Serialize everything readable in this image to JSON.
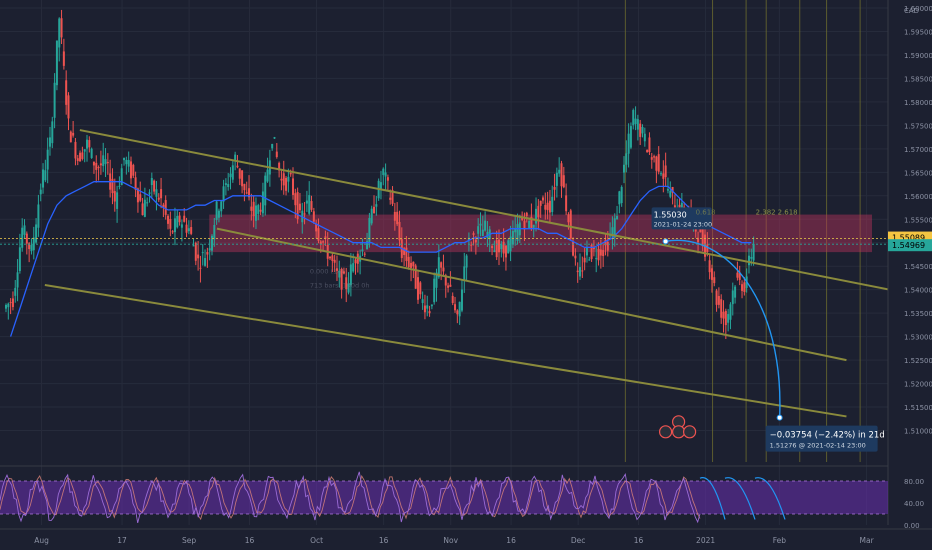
{
  "chart_data": {
    "type": "line",
    "title": "",
    "currency_label": "CAD",
    "ylim": [
      1.505,
      1.6
    ],
    "y_ticks": [
      "1.60000",
      "1.59500",
      "1.59000",
      "1.58500",
      "1.58000",
      "1.57500",
      "1.57000",
      "1.56500",
      "1.56000",
      "1.55500",
      "1.55000",
      "1.54500",
      "1.54000",
      "1.53500",
      "1.53000",
      "1.52500",
      "1.52000",
      "1.51500",
      "1.51000"
    ],
    "x_ticks": [
      "Aug",
      "17",
      "Sep",
      "16",
      "Oct",
      "16",
      "Nov",
      "16",
      "Dec",
      "16",
      "2021",
      "Feb",
      "Mar",
      "16"
    ],
    "price_labels": {
      "last": "1.55089",
      "current": "1.54969"
    },
    "colors": {
      "background": "#1c2030",
      "up": "#26a69a",
      "down": "#ef5350",
      "moving_average": "#2962ff",
      "channel": "#8a8a3c",
      "zone": "#b8335a",
      "oscillator": "#9b6bd6",
      "projection": "#2196f3"
    },
    "series": [
      {
        "values": [
          1.538,
          1.553,
          1.548,
          1.562,
          1.571,
          1.598,
          1.575,
          1.568,
          1.571,
          1.566,
          1.567,
          1.559,
          1.568,
          1.564,
          1.557,
          1.562,
          1.559,
          1.552,
          1.555,
          1.553,
          1.546,
          1.548,
          1.557,
          1.562,
          1.568,
          1.561,
          1.556,
          1.559,
          1.573,
          1.563,
          1.563,
          1.555,
          1.559,
          1.552,
          1.548,
          1.543,
          1.541,
          1.547,
          1.549,
          1.558,
          1.565,
          1.558,
          1.548,
          1.545,
          1.538,
          1.536,
          1.545,
          1.541,
          1.533,
          1.549,
          1.552,
          1.553,
          1.549,
          1.548,
          1.551,
          1.555,
          1.554,
          1.558,
          1.558,
          1.567,
          1.555,
          1.542,
          1.548,
          1.548,
          1.549,
          1.554,
          1.566,
          1.577,
          1.573,
          1.568,
          1.566,
          1.56,
          1.557,
          1.556,
          1.552,
          1.548,
          1.538,
          1.533,
          1.542,
          1.541,
          1.55
        ]
      },
      {
        "values": [
          1.53,
          1.536,
          1.542,
          1.548,
          1.554,
          1.558,
          1.56,
          1.561,
          1.562,
          1.563,
          1.563,
          1.563,
          1.563,
          1.562,
          1.561,
          1.56,
          1.558,
          1.557,
          1.557,
          1.557,
          1.558,
          1.558,
          1.559,
          1.559,
          1.56,
          1.56,
          1.56,
          1.56,
          1.559,
          1.558,
          1.557,
          1.556,
          1.555,
          1.554,
          1.553,
          1.552,
          1.551,
          1.55,
          1.55,
          1.55,
          1.549,
          1.549,
          1.549,
          1.548,
          1.548,
          1.548,
          1.548,
          1.549,
          1.55,
          1.55,
          1.551,
          1.551,
          1.552,
          1.552,
          1.553,
          1.553,
          1.553,
          1.553,
          1.552,
          1.552,
          1.551,
          1.55,
          1.549,
          1.549,
          1.55,
          1.551,
          1.553,
          1.556,
          1.559,
          1.561,
          1.562,
          1.562,
          1.56,
          1.558,
          1.556,
          1.554,
          1.553,
          1.552,
          1.551,
          1.55,
          1.55
        ]
      }
    ],
    "zone": {
      "top": 1.556,
      "bottom": 1.548
    },
    "channel": [
      {
        "from": [
          1.574,
          45
        ],
        "to": [
          1.539,
          135
        ]
      },
      {
        "from": [
          1.553,
          55
        ],
        "to": [
          1.525,
          125
        ]
      },
      {
        "from": [
          1.541,
          45
        ],
        "to": [
          1.513,
          125
        ]
      }
    ],
    "projection": {
      "start": [
        1.5503,
        104
      ],
      "end": [
        1.51276,
        121
      ]
    },
    "annotations": {
      "pivot_price": "1.55030",
      "pivot_time": "2021-01-24 23:00",
      "change_text": "−0.03754 (−2.42%) in 21d",
      "target_text": "1.51276 @ 2021-02-14 23:00",
      "fib_label_1": "0.618",
      "fib_label_2": "2.382",
      "fib_label_3": "2.618",
      "faint_label_1": "0.000 (14)",
      "faint_label_2": "713 bars, 100d 0h"
    },
    "oscillator": {
      "ylim": [
        0,
        100
      ],
      "levels": [
        80,
        20
      ],
      "tick_labels": [
        "80.00",
        "40.00",
        "0.00"
      ]
    }
  }
}
